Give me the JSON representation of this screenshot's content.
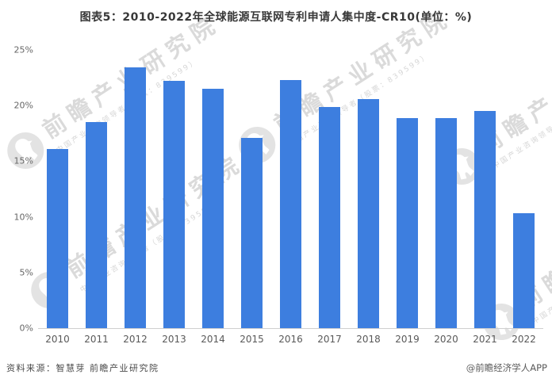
{
  "title": "图表5：2010-2022年全球能源互联网专利申请人集中度-CR10(单位：%)",
  "chart_data": {
    "type": "bar",
    "title": "图表5：2010-2022年全球能源互联网专利申请人集中度-CR10(单位：%)",
    "categories": [
      "2010",
      "2011",
      "2012",
      "2013",
      "2014",
      "2015",
      "2016",
      "2017",
      "2018",
      "2019",
      "2020",
      "2021",
      "2022"
    ],
    "values": [
      16.1,
      18.5,
      23.4,
      22.2,
      21.5,
      17.1,
      22.3,
      19.9,
      20.6,
      18.9,
      18.9,
      19.5,
      10.3
    ],
    "unit": "%",
    "xlabel": "",
    "ylabel": "",
    "ylim": [
      0,
      25
    ],
    "ytick_labels": [
      "0%",
      "5%",
      "10%",
      "15%",
      "20%",
      "25%"
    ],
    "grid": false,
    "legend": "none",
    "bar_color": "#3D7EDF",
    "axis_line_color": "#cfcfcf"
  },
  "watermark": {
    "brand": "前瞻产业研究院",
    "tagline": "中国产业咨询领导者（股票：839599）"
  },
  "footer": {
    "source": "资料来源：智慧芽 前瞻产业研究院",
    "credit": "@前瞻经济学人APP"
  }
}
